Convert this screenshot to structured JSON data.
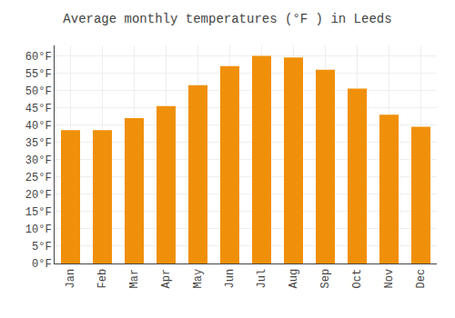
{
  "chart_data": {
    "type": "bar",
    "title": "Average monthly temperatures (°F ) in Leeds",
    "categories": [
      "Jan",
      "Feb",
      "Mar",
      "Apr",
      "May",
      "Jun",
      "Jul",
      "Aug",
      "Sep",
      "Oct",
      "Nov",
      "Dec"
    ],
    "values": [
      38.5,
      38.5,
      42.0,
      45.5,
      51.5,
      57.0,
      60.0,
      59.5,
      56.0,
      50.5,
      43.0,
      39.5
    ],
    "color": "#F0900A",
    "ylim": [
      0,
      63
    ],
    "yticks": [
      {
        "value": 0,
        "label": "0°F"
      },
      {
        "value": 5,
        "label": "5°F"
      },
      {
        "value": 10,
        "label": "10°F"
      },
      {
        "value": 15,
        "label": "15°F"
      },
      {
        "value": 20,
        "label": "20°F"
      },
      {
        "value": 25,
        "label": "25°F"
      },
      {
        "value": 30,
        "label": "30°F"
      },
      {
        "value": 35,
        "label": "35°F"
      },
      {
        "value": 40,
        "label": "40°F"
      },
      {
        "value": 45,
        "label": "45°F"
      },
      {
        "value": 50,
        "label": "50°F"
      },
      {
        "value": 55,
        "label": "55°F"
      },
      {
        "value": 60,
        "label": "60°F"
      }
    ],
    "grid": true
  }
}
